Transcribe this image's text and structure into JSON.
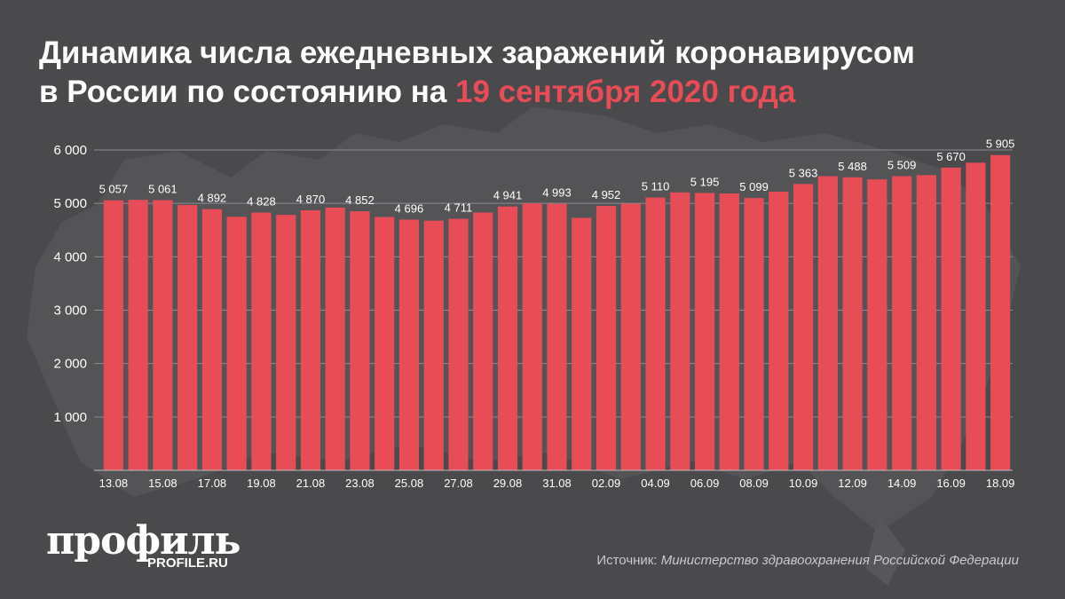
{
  "title": {
    "line1": "Динамика числа ежедневных заражений коронавирусом",
    "line2_prefix": "в России по состоянию на ",
    "line2_accent": "19 сентября 2020 года"
  },
  "colors": {
    "background": "#4a494c",
    "bar": "#e84c57",
    "accent": "#e84c57",
    "text": "#ffffff",
    "grid": "#8d8c90"
  },
  "chart_data": {
    "type": "bar",
    "categories": [
      "13.08",
      "14.08",
      "15.08",
      "16.08",
      "17.08",
      "18.08",
      "19.08",
      "20.08",
      "21.08",
      "22.08",
      "23.08",
      "24.08",
      "25.08",
      "26.08",
      "27.08",
      "28.08",
      "29.08",
      "30.08",
      "31.08",
      "01.09",
      "02.09",
      "03.09",
      "04.09",
      "05.09",
      "06.09",
      "07.09",
      "08.09",
      "09.09",
      "10.09",
      "11.09",
      "12.09",
      "13.09",
      "14.09",
      "15.09",
      "16.09",
      "17.09",
      "18.09"
    ],
    "x_tick_labels": [
      "13.08",
      "15.08",
      "17.08",
      "19.08",
      "21.08",
      "23.08",
      "25.08",
      "27.08",
      "29.08",
      "31.08",
      "02.09",
      "04.09",
      "06.09",
      "08.09",
      "10.09",
      "12.09",
      "14.09",
      "16.09",
      "18.09"
    ],
    "values": [
      5057,
      5065,
      5061,
      4969,
      4892,
      4748,
      4828,
      4785,
      4870,
      4921,
      4852,
      4744,
      4696,
      4676,
      4711,
      4829,
      4941,
      5000,
      4993,
      4729,
      4952,
      4995,
      5110,
      5205,
      5195,
      5185,
      5099,
      5218,
      5363,
      5509,
      5488,
      5449,
      5509,
      5529,
      5670,
      5762,
      5905
    ],
    "data_labels": [
      {
        "category": "13.08",
        "text": "5 057"
      },
      {
        "category": "15.08",
        "text": "5 061"
      },
      {
        "category": "17.08",
        "text": "4 892"
      },
      {
        "category": "19.08",
        "text": "4 828"
      },
      {
        "category": "21.08",
        "text": "4 870"
      },
      {
        "category": "23.08",
        "text": "4 852"
      },
      {
        "category": "25.08",
        "text": "4 696"
      },
      {
        "category": "27.08",
        "text": "4 711"
      },
      {
        "category": "29.08",
        "text": "4 941"
      },
      {
        "category": "31.08",
        "text": "4 993"
      },
      {
        "category": "02.09",
        "text": "4 952"
      },
      {
        "category": "04.09",
        "text": "5 110"
      },
      {
        "category": "06.09",
        "text": "5 195"
      },
      {
        "category": "08.09",
        "text": "5 099"
      },
      {
        "category": "10.09",
        "text": "5 363"
      },
      {
        "category": "12.09",
        "text": "5 488"
      },
      {
        "category": "14.09",
        "text": "5 509"
      },
      {
        "category": "16.09",
        "text": "5 670"
      },
      {
        "category": "18.09",
        "text": "5 905"
      }
    ],
    "y_ticks": [
      {
        "value": 1000,
        "label": "1 000"
      },
      {
        "value": 2000,
        "label": "2 000"
      },
      {
        "value": 3000,
        "label": "3 000"
      },
      {
        "value": 4000,
        "label": "4 000"
      },
      {
        "value": 5000,
        "label": "5 000"
      },
      {
        "value": 6000,
        "label": "6 000"
      }
    ],
    "ylim": [
      0,
      6000
    ],
    "grid": true,
    "legend": "none"
  },
  "logo": {
    "word": "профиль",
    "site": "PROFILE.RU"
  },
  "source": {
    "label": "Источник: ",
    "value": "Министерство здравоохранения Российской Федерации"
  }
}
